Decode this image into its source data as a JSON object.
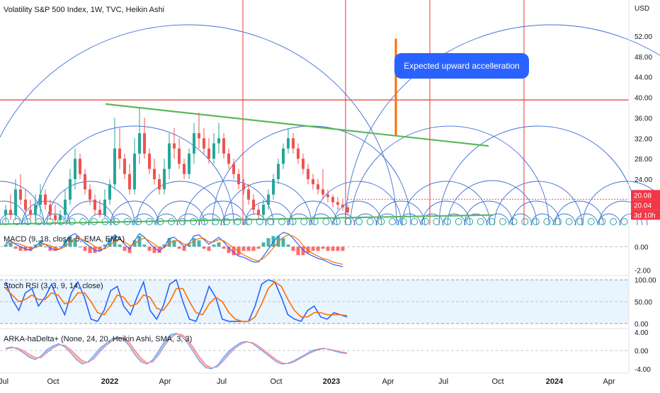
{
  "chart_data": {
    "type": "candlestick",
    "title": "Volatility S&P 500 Index, 1W, TVC, Heikin Ashi",
    "currency": "USD",
    "price_axis": {
      "range": [
        15,
        56
      ],
      "ticks": [
        "52.00",
        "48.00",
        "44.00",
        "40.00",
        "36.00",
        "32.00",
        "28.00",
        "24.00"
      ]
    },
    "price_labels": [
      {
        "text": "20.08",
        "value": 20.08,
        "color": "#f23645"
      },
      {
        "text": "20.04",
        "value": 20.04,
        "color": "#f23645"
      },
      {
        "text": "3d 10h",
        "color": "#f23645"
      }
    ],
    "x_labels": [
      {
        "text": "Jul",
        "bold": false
      },
      {
        "text": "Oct",
        "bold": false
      },
      {
        "text": "2022",
        "bold": true
      },
      {
        "text": "Apr",
        "bold": false
      },
      {
        "text": "Jul",
        "bold": false
      },
      {
        "text": "Oct",
        "bold": false
      },
      {
        "text": "2023",
        "bold": true
      },
      {
        "text": "Apr",
        "bold": false
      },
      {
        "text": "Jul",
        "bold": false
      },
      {
        "text": "Oct",
        "bold": false
      },
      {
        "text": "2024",
        "bold": true
      },
      {
        "text": "Apr",
        "bold": false
      }
    ],
    "candles": [
      {
        "o": 17,
        "h": 19,
        "l": 15.5,
        "c": 18
      },
      {
        "o": 18,
        "h": 21,
        "l": 16,
        "c": 17
      },
      {
        "o": 17,
        "h": 24,
        "l": 16,
        "c": 22
      },
      {
        "o": 22,
        "h": 25,
        "l": 19,
        "c": 20
      },
      {
        "o": 20,
        "h": 22,
        "l": 17,
        "c": 18
      },
      {
        "o": 18,
        "h": 20,
        "l": 16,
        "c": 17
      },
      {
        "o": 17,
        "h": 21,
        "l": 16,
        "c": 19
      },
      {
        "o": 19,
        "h": 23,
        "l": 17,
        "c": 21
      },
      {
        "o": 21,
        "h": 22,
        "l": 18,
        "c": 19
      },
      {
        "o": 19,
        "h": 20,
        "l": 16,
        "c": 17
      },
      {
        "o": 17,
        "h": 19,
        "l": 15,
        "c": 16
      },
      {
        "o": 16,
        "h": 18,
        "l": 15,
        "c": 17
      },
      {
        "o": 17,
        "h": 22,
        "l": 16,
        "c": 20
      },
      {
        "o": 20,
        "h": 26,
        "l": 19,
        "c": 24
      },
      {
        "o": 24,
        "h": 30,
        "l": 22,
        "c": 28
      },
      {
        "o": 28,
        "h": 29,
        "l": 24,
        "c": 25
      },
      {
        "o": 25,
        "h": 26,
        "l": 21,
        "c": 22
      },
      {
        "o": 22,
        "h": 23,
        "l": 19,
        "c": 20
      },
      {
        "o": 20,
        "h": 21,
        "l": 17,
        "c": 18
      },
      {
        "o": 18,
        "h": 20,
        "l": 16.5,
        "c": 17
      },
      {
        "o": 17,
        "h": 22,
        "l": 16.5,
        "c": 20
      },
      {
        "o": 20,
        "h": 24,
        "l": 19,
        "c": 23
      },
      {
        "o": 23,
        "h": 36,
        "l": 22,
        "c": 30
      },
      {
        "o": 30,
        "h": 34,
        "l": 26,
        "c": 28
      },
      {
        "o": 28,
        "h": 29,
        "l": 24,
        "c": 25
      },
      {
        "o": 25,
        "h": 27,
        "l": 21,
        "c": 22
      },
      {
        "o": 22,
        "h": 32,
        "l": 21,
        "c": 29
      },
      {
        "o": 29,
        "h": 38,
        "l": 27,
        "c": 33
      },
      {
        "o": 33,
        "h": 36,
        "l": 28,
        "c": 29
      },
      {
        "o": 29,
        "h": 30,
        "l": 25,
        "c": 26
      },
      {
        "o": 26,
        "h": 28,
        "l": 23,
        "c": 24
      },
      {
        "o": 24,
        "h": 25,
        "l": 21,
        "c": 22
      },
      {
        "o": 22,
        "h": 28,
        "l": 21,
        "c": 26
      },
      {
        "o": 26,
        "h": 33,
        "l": 24,
        "c": 31
      },
      {
        "o": 31,
        "h": 34,
        "l": 28,
        "c": 30
      },
      {
        "o": 30,
        "h": 32,
        "l": 26,
        "c": 27
      },
      {
        "o": 27,
        "h": 28,
        "l": 24,
        "c": 25
      },
      {
        "o": 25,
        "h": 30,
        "l": 24,
        "c": 29
      },
      {
        "o": 29,
        "h": 35,
        "l": 27,
        "c": 33
      },
      {
        "o": 33,
        "h": 37,
        "l": 30,
        "c": 32
      },
      {
        "o": 32,
        "h": 34,
        "l": 29,
        "c": 30
      },
      {
        "o": 30,
        "h": 32,
        "l": 27,
        "c": 28
      },
      {
        "o": 28,
        "h": 33,
        "l": 27,
        "c": 31
      },
      {
        "o": 31,
        "h": 35,
        "l": 29,
        "c": 32
      },
      {
        "o": 32,
        "h": 33,
        "l": 28,
        "c": 29
      },
      {
        "o": 29,
        "h": 30,
        "l": 26,
        "c": 27
      },
      {
        "o": 27,
        "h": 28,
        "l": 24,
        "c": 25
      },
      {
        "o": 25,
        "h": 26,
        "l": 22,
        "c": 23
      },
      {
        "o": 23,
        "h": 24,
        "l": 21,
        "c": 22
      },
      {
        "o": 22,
        "h": 23,
        "l": 19,
        "c": 20
      },
      {
        "o": 20,
        "h": 21,
        "l": 17,
        "c": 18
      },
      {
        "o": 18,
        "h": 19,
        "l": 16,
        "c": 17
      },
      {
        "o": 17,
        "h": 20,
        "l": 16,
        "c": 19
      },
      {
        "o": 19,
        "h": 22,
        "l": 18,
        "c": 21
      },
      {
        "o": 21,
        "h": 25,
        "l": 20,
        "c": 24
      },
      {
        "o": 24,
        "h": 28,
        "l": 23,
        "c": 27
      },
      {
        "o": 27,
        "h": 31,
        "l": 26,
        "c": 30
      },
      {
        "o": 30,
        "h": 34,
        "l": 29,
        "c": 32
      },
      {
        "o": 32,
        "h": 33,
        "l": 29,
        "c": 30
      },
      {
        "o": 30,
        "h": 31,
        "l": 27,
        "c": 28
      },
      {
        "o": 28,
        "h": 29,
        "l": 25,
        "c": 26
      },
      {
        "o": 26,
        "h": 27,
        "l": 23,
        "c": 24
      },
      {
        "o": 24,
        "h": 25,
        "l": 22,
        "c": 23
      },
      {
        "o": 23,
        "h": 24,
        "l": 21,
        "c": 22
      },
      {
        "o": 22,
        "h": 26,
        "l": 20,
        "c": 21
      },
      {
        "o": 21,
        "h": 22,
        "l": 19.5,
        "c": 20.5
      },
      {
        "o": 20.5,
        "h": 21,
        "l": 18.5,
        "c": 19.5
      },
      {
        "o": 19.5,
        "h": 20.5,
        "l": 18,
        "c": 19
      },
      {
        "o": 19,
        "h": 20.2,
        "l": 17.8,
        "c": 18.5
      },
      {
        "o": 18.5,
        "h": 19,
        "l": 17,
        "c": 17.5
      }
    ],
    "horizontal_line": {
      "value": 39.5,
      "color": "#e53935"
    },
    "vertical_lines": {
      "color": "#e53935"
    },
    "trendlines": [
      {
        "name": "upper",
        "from": [
          4,
          38.7
        ],
        "to": [
          55,
          30.5
        ],
        "color": "#5cb85c"
      },
      {
        "name": "lower",
        "from": [
          0,
          15.2
        ],
        "to": [
          55,
          17.0
        ],
        "color": "#5cb85c"
      }
    ],
    "arrow": {
      "value_top": 51.5,
      "value_bottom": 32.5,
      "color": "#ff6d00"
    },
    "callout": {
      "text": "Expected upward accelleration",
      "color": "#2962ff"
    },
    "arc_color": "#3d6fd8",
    "marker_color": "#26a69a",
    "indicators": [
      {
        "name": "macd",
        "legend": "MACD (9, 18, close, 5, EMA, EMA)",
        "ticks": [
          "0.00",
          "-2.00"
        ],
        "range": [
          -2.2,
          1.4
        ],
        "macd": [
          0.3,
          0.5,
          0.2,
          0.0,
          -0.2,
          -0.3,
          0.0,
          0.4,
          0.2,
          -0.1,
          -0.3,
          -0.2,
          0.3,
          0.9,
          1.1,
          0.7,
          0.3,
          0.0,
          -0.3,
          -0.4,
          -0.1,
          0.5,
          1.0,
          0.7,
          0.2,
          -0.2,
          0.5,
          1.1,
          0.8,
          0.3,
          -0.1,
          -0.4,
          0.0,
          0.7,
          0.8,
          0.4,
          0.0,
          0.3,
          0.9,
          1.0,
          0.6,
          0.2,
          0.5,
          0.8,
          0.4,
          -0.1,
          -0.5,
          -0.8,
          -0.9,
          -1.1,
          -1.3,
          -1.3,
          -0.8,
          -0.2,
          0.4,
          0.9,
          1.2,
          1.1,
          0.7,
          0.2,
          -0.3,
          -0.6,
          -0.8,
          -1.0,
          -1.1,
          -1.3,
          -1.5,
          -1.6,
          -1.7
        ],
        "signal": [
          0.2,
          0.3,
          0.3,
          0.2,
          0.0,
          -0.1,
          -0.1,
          0.1,
          0.2,
          0.1,
          -0.1,
          -0.2,
          0.0,
          0.4,
          0.7,
          0.7,
          0.5,
          0.3,
          0.0,
          -0.2,
          -0.2,
          0.1,
          0.5,
          0.6,
          0.4,
          0.1,
          0.2,
          0.6,
          0.7,
          0.5,
          0.2,
          -0.1,
          -0.1,
          0.3,
          0.5,
          0.5,
          0.2,
          0.2,
          0.5,
          0.7,
          0.7,
          0.4,
          0.4,
          0.6,
          0.5,
          0.2,
          -0.1,
          -0.4,
          -0.7,
          -0.9,
          -1.1,
          -1.2,
          -1.0,
          -0.6,
          -0.1,
          0.4,
          0.8,
          1.0,
          0.9,
          0.6,
          0.1,
          -0.3,
          -0.6,
          -0.8,
          -1.0,
          -1.1,
          -1.3,
          -1.4,
          -1.5
        ]
      },
      {
        "name": "stoch",
        "legend": "Stoch RSI (3, 3, 9, 14, close)",
        "ticks": [
          "100.00",
          "50.00",
          "0.00"
        ],
        "range": [
          -5,
          105
        ],
        "k": [
          95,
          55,
          30,
          70,
          80,
          40,
          60,
          90,
          50,
          20,
          70,
          95,
          60,
          10,
          5,
          30,
          75,
          85,
          40,
          20,
          60,
          95,
          30,
          10,
          40,
          90,
          100,
          50,
          10,
          5,
          40,
          85,
          60,
          10,
          5,
          5,
          5,
          5,
          40,
          90,
          100,
          95,
          60,
          20,
          10,
          5,
          30,
          40,
          15,
          10,
          25,
          20,
          15
        ],
        "d": [
          80,
          65,
          50,
          55,
          65,
          55,
          55,
          70,
          65,
          45,
          50,
          70,
          70,
          50,
          25,
          20,
          40,
          65,
          60,
          40,
          45,
          65,
          60,
          35,
          30,
          50,
          80,
          80,
          50,
          25,
          20,
          45,
          60,
          50,
          25,
          10,
          5,
          5,
          15,
          45,
          80,
          95,
          85,
          55,
          30,
          15,
          15,
          25,
          25,
          20,
          20,
          20,
          18
        ]
      },
      {
        "name": "ha_delta",
        "legend": "ARKA-haDelta+ (None, 24, 20, Heikin Ashi, SMA, 3, 3)",
        "ticks": [
          "4.00",
          "0.00",
          "-4.00"
        ],
        "range": [
          -4.5,
          4.5
        ],
        "delta": [
          0.5,
          0.8,
          0.3,
          -0.5,
          -1.5,
          -2.0,
          -1.2,
          0.2,
          1.0,
          1.5,
          0.8,
          -0.5,
          -2.0,
          -3.0,
          -2.5,
          -1.0,
          0.5,
          1.5,
          2.5,
          3.0,
          2.5,
          1.0,
          -1.0,
          -2.5,
          -3.0,
          -2.0,
          0.0,
          2.0,
          3.5,
          3.8,
          3.0,
          1.5,
          -0.5,
          -2.5,
          -3.8,
          -4.0,
          -3.2,
          -1.5,
          0.0,
          1.0,
          1.8,
          2.0,
          1.5,
          0.5,
          -0.5,
          -1.5,
          -2.5,
          -3.0,
          -2.8,
          -2.2,
          -1.5,
          -0.8,
          0.0,
          0.3,
          0.5,
          0.2,
          -0.2,
          -0.5,
          -0.7
        ],
        "smooth": [
          0.3,
          0.6,
          0.6,
          0.0,
          -0.8,
          -1.5,
          -1.6,
          -0.5,
          0.5,
          1.2,
          1.2,
          0.3,
          -1.0,
          -2.2,
          -2.6,
          -1.8,
          -0.3,
          1.0,
          2.0,
          2.7,
          2.8,
          1.8,
          0.0,
          -1.6,
          -2.7,
          -2.5,
          -1.0,
          1.0,
          2.7,
          3.6,
          3.5,
          2.3,
          0.5,
          -1.5,
          -3.1,
          -3.8,
          -3.6,
          -2.3,
          -0.8,
          0.5,
          1.4,
          1.9,
          1.7,
          1.0,
          0.0,
          -1.0,
          -2.0,
          -2.7,
          -2.9,
          -2.5,
          -1.8,
          -1.1,
          -0.4,
          0.1,
          0.4,
          0.3,
          0.0,
          -0.3,
          -0.5
        ]
      }
    ],
    "grid": false,
    "legend_position": "top-left"
  }
}
